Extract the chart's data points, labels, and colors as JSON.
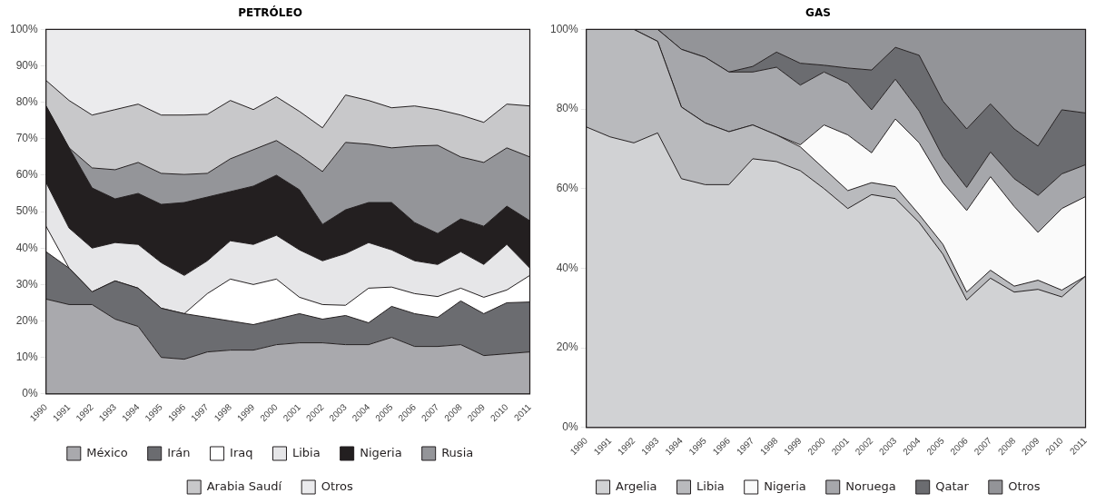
{
  "chart_data": [
    {
      "type": "area",
      "title": "PETRÓLEO",
      "stacked": true,
      "grid": false,
      "legend": "bottom",
      "ylim": [
        0,
        100
      ],
      "yticks": [
        {
          "value": 0,
          "label": "0%"
        },
        {
          "value": 10,
          "label": "10%"
        },
        {
          "value": 20,
          "label": "20%"
        },
        {
          "value": 30,
          "label": "30%"
        },
        {
          "value": 40,
          "label": "40%"
        },
        {
          "value": 50,
          "label": "50%"
        },
        {
          "value": 60,
          "label": "60%"
        },
        {
          "value": 70,
          "label": "70%"
        },
        {
          "value": 80,
          "label": "80%"
        },
        {
          "value": 90,
          "label": "90%"
        },
        {
          "value": 100,
          "label": "100%"
        }
      ],
      "categories": [
        "1990",
        "1991",
        "1992",
        "1993",
        "1994",
        "1995",
        "1996",
        "1997",
        "1998",
        "1999",
        "2000",
        "2001",
        "2002",
        "2003",
        "2004",
        "2005",
        "2006",
        "2007",
        "2008",
        "2009",
        "2010",
        "2011"
      ],
      "series": [
        {
          "name": "México",
          "color": "#a9a9ad",
          "values": [
            26,
            24.5,
            24.5,
            20.5,
            18.5,
            10,
            9.5,
            11.5,
            12,
            12,
            13.5,
            14,
            14,
            13.5,
            13.5,
            15.5,
            13,
            13,
            13.5,
            10.5,
            11,
            11.5
          ]
        },
        {
          "name": "Irán",
          "color": "#6b6c70",
          "values": [
            13,
            10,
            3.5,
            10.5,
            10.5,
            13.5,
            12.5,
            9.5,
            8,
            7,
            7,
            8,
            6.5,
            8,
            6,
            8.5,
            9,
            8,
            12,
            11.5,
            14,
            13.7
          ]
        },
        {
          "name": "Iraq",
          "color": "#ffffff",
          "values": [
            7,
            0,
            0,
            0,
            0,
            0,
            0,
            6.5,
            11.5,
            11,
            11,
            4.5,
            4,
            2.8,
            9.5,
            5.3,
            5.5,
            5.7,
            3.5,
            4.5,
            3.5,
            7.3
          ]
        },
        {
          "name": "Libia",
          "color": "#e6e6e8",
          "values": [
            12,
            11,
            12,
            10.5,
            12,
            12.5,
            10.5,
            9,
            10.5,
            11,
            12,
            13,
            12,
            14.2,
            12.5,
            10.2,
            9,
            8.8,
            10,
            9,
            12.5,
            2
          ]
        },
        {
          "name": "Nigeria",
          "color": "#231f20",
          "values": [
            21,
            22,
            16.5,
            12,
            14,
            16,
            20,
            17.5,
            13.5,
            16,
            16.5,
            16.5,
            10,
            12,
            11,
            13,
            10.5,
            8.5,
            9,
            10.5,
            10.5,
            13
          ]
        },
        {
          "name": "Rusia",
          "color": "#949599",
          "values": [
            0,
            0,
            5.5,
            8,
            8.5,
            8.5,
            7.7,
            6.5,
            9,
            10,
            9.5,
            9.5,
            14.5,
            18.5,
            16,
            15,
            21,
            24.2,
            17,
            17.5,
            16,
            17.5
          ]
        },
        {
          "name": "Arabia Saudí",
          "color": "#c8c8ca",
          "values": [
            7,
            13,
            14.5,
            16.5,
            16,
            16,
            16.3,
            16.2,
            16,
            11,
            12,
            12,
            12,
            13,
            12,
            11,
            11,
            9.8,
            11.5,
            11,
            12,
            14
          ]
        },
        {
          "name": "Otros",
          "color": "#ebebed",
          "values": [
            14,
            19.5,
            23.5,
            22,
            20.5,
            23.5,
            23.5,
            23.3,
            19.5,
            22,
            18.5,
            22.5,
            27,
            18,
            19.5,
            21.5,
            21,
            22,
            23.5,
            25.5,
            20.5,
            21
          ]
        }
      ]
    },
    {
      "type": "area",
      "title": "GAS",
      "stacked": true,
      "grid": false,
      "legend": "bottom",
      "ylim": [
        0,
        100
      ],
      "yticks": [
        {
          "value": 0,
          "label": "0%"
        },
        {
          "value": 20,
          "label": "20%"
        },
        {
          "value": 40,
          "label": "40%"
        },
        {
          "value": 60,
          "label": "60%"
        },
        {
          "value": 80,
          "label": "80%"
        },
        {
          "value": 100,
          "label": "100%"
        }
      ],
      "categories": [
        "1990",
        "1991",
        "1992",
        "1993",
        "1994",
        "1995",
        "1996",
        "1997",
        "1998",
        "1999",
        "2000",
        "2001",
        "2002",
        "2003",
        "2004",
        "2005",
        "2006",
        "2007",
        "2008",
        "2009",
        "2010",
        "2011"
      ],
      "series": [
        {
          "name": "Argelia",
          "color": "#d1d2d4",
          "values": [
            75.5,
            73,
            71.5,
            74,
            62.5,
            61,
            61,
            67.5,
            66.8,
            64.5,
            60,
            55,
            58.5,
            57.5,
            51.5,
            43.5,
            32,
            37.5,
            34,
            34.7,
            32.8,
            38
          ]
        },
        {
          "name": "Libia",
          "color": "#b9babd",
          "values": [
            24.5,
            27,
            28.5,
            23,
            18,
            15.5,
            13.3,
            8.5,
            6.7,
            6,
            5,
            4.5,
            3,
            3,
            2,
            2.5,
            2,
            2,
            1.5,
            2.3,
            1.7,
            0
          ]
        },
        {
          "name": "Nigeria",
          "color": "#fafafa",
          "values": [
            0,
            0,
            0,
            0,
            0,
            0,
            0,
            0,
            0,
            0.5,
            11,
            14,
            7.5,
            17,
            18,
            15.5,
            20.5,
            23.5,
            20,
            12,
            20.5,
            20
          ]
        },
        {
          "name": "Noruega",
          "color": "#a6a7ab",
          "values": [
            0,
            0,
            0,
            3,
            14.5,
            16.5,
            15,
            13.3,
            17,
            15,
            13.3,
            13,
            10.8,
            10,
            8,
            6.5,
            5.8,
            6.2,
            7,
            9.3,
            8.7,
            8
          ]
        },
        {
          "name": "Qatar",
          "color": "#6b6c70",
          "values": [
            0,
            0,
            0,
            0,
            0,
            0,
            0,
            1.4,
            3.8,
            5.5,
            1.7,
            3.8,
            10,
            8,
            14,
            14,
            14.7,
            12.1,
            12.5,
            12.4,
            16.1,
            13
          ]
        },
        {
          "name": "Otros",
          "color": "#939498",
          "values": [
            0,
            0,
            0,
            0,
            5,
            7,
            10.7,
            9.3,
            5.7,
            8.5,
            9,
            9.7,
            10.2,
            4.5,
            6.5,
            18,
            25,
            18.7,
            25,
            29.3,
            20.2,
            21
          ]
        }
      ]
    }
  ]
}
